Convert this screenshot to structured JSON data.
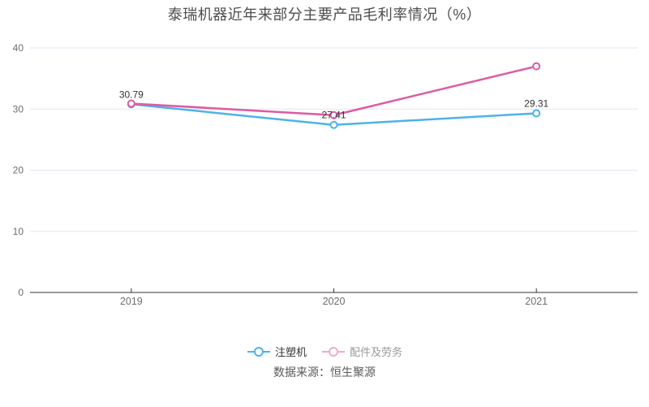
{
  "title": "泰瑞机器近年来部分主要产品毛利率情况（%）",
  "source": "数据来源：恒生聚源",
  "colors": {
    "background": "#ffffff",
    "grid": "#e2e6f2",
    "axis": "#333333",
    "axis_label": "#6e6e6e",
    "data_label": "#333333",
    "title": "#4d4d4d",
    "source_text": "#5a5a5a"
  },
  "legend": {
    "items": [
      {
        "label": "注塑机",
        "color": "#4db2ec",
        "text_color": "#333333",
        "opacity": 1
      },
      {
        "label": "配件及劳务",
        "color": "#dd5aa4",
        "text_color": "#333333",
        "opacity": 0.5
      }
    ]
  },
  "chart_data": {
    "type": "line",
    "title": "泰瑞机器近年来部分主要产品毛利率情况（%）",
    "categories": [
      "2019",
      "2020",
      "2021"
    ],
    "series": [
      {
        "name": "注塑机",
        "color": "#4db2ec",
        "values": [
          30.79,
          27.41,
          29.31
        ],
        "labels": [
          "30.79",
          "27.41",
          "29.31"
        ]
      },
      {
        "name": "配件及劳务",
        "color": "#dd5aa4",
        "values": [
          30.9,
          29.0,
          37.0
        ],
        "labels": [
          "",
          "",
          ""
        ]
      }
    ],
    "ylim": [
      0,
      40
    ],
    "yticks": [
      0,
      10,
      20,
      30,
      40
    ],
    "xlabel": "",
    "ylabel": "",
    "grid": true,
    "legend_position": "bottom",
    "marker": "hollow-circle"
  }
}
